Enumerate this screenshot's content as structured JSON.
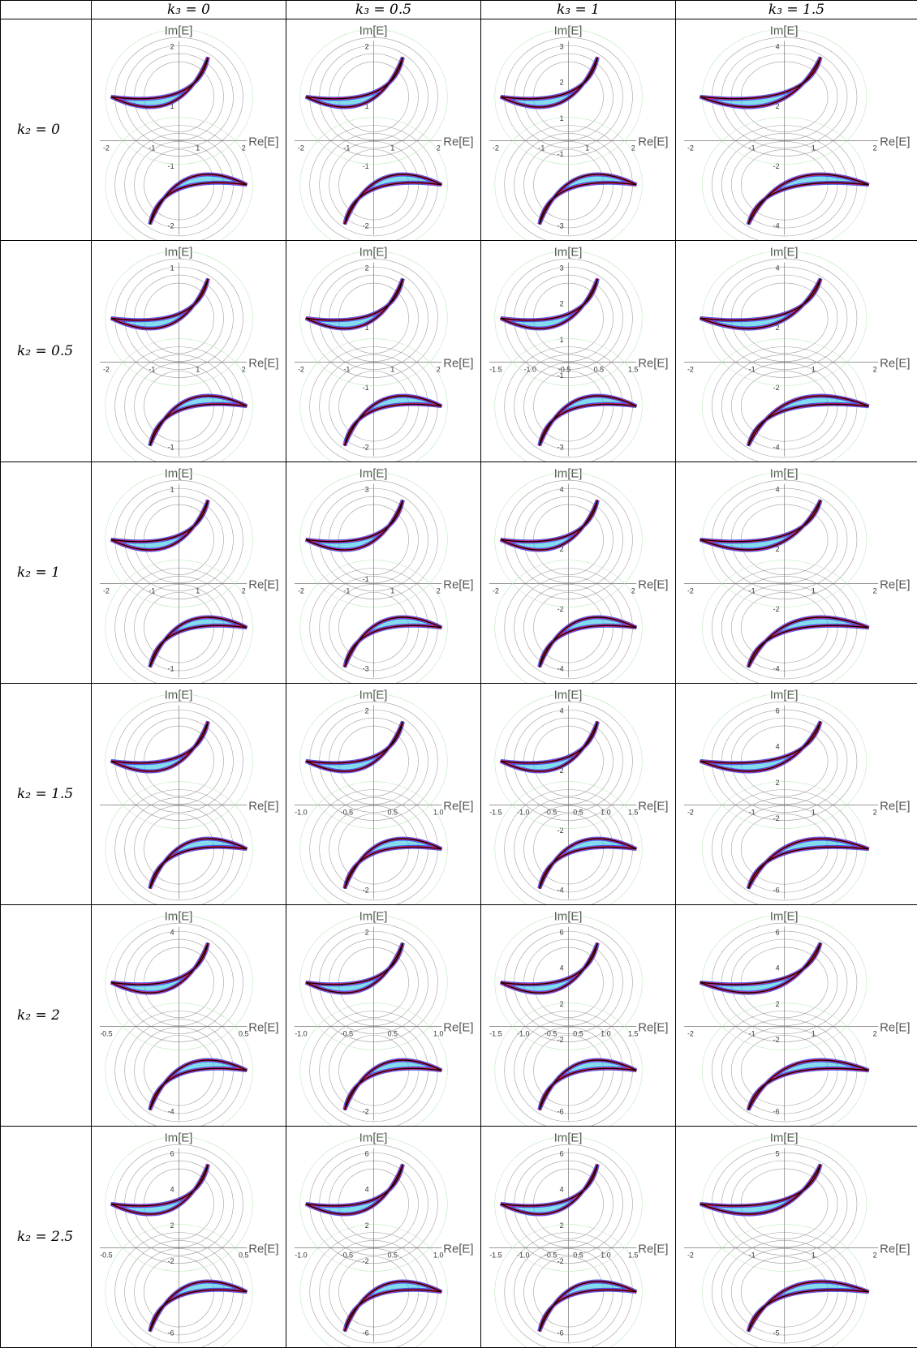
{
  "header": {
    "columns": [
      "k₃ = 0",
      "k₃ = 0.5",
      "k₃ = 1",
      "k₃ = 1.5"
    ]
  },
  "rows": [
    "k₂ = 0",
    "k₂ = 0.5",
    "k₂ = 1",
    "k₂ = 1.5",
    "k₂ = 2",
    "k₂ = 2.5"
  ],
  "axis_labels": {
    "y": "Im[E]",
    "x": "Re[E]"
  },
  "colors": {
    "outline_red": "#e02020",
    "core_black": "#000000",
    "blue": "#2040e0",
    "cyan": "#20c0e0",
    "magenta": "#c020c0",
    "contour_green": "#a0e0a0",
    "contour_gray": "#777777",
    "axis": "#888888"
  },
  "panels": [
    [
      {
        "xticks": [
          "-2",
          "-1",
          "1",
          "2"
        ],
        "yticks": [
          "2",
          "1",
          "-1",
          "-2"
        ],
        "shape": "star"
      },
      {
        "xticks": [
          "-2",
          "-1",
          "1",
          "2"
        ],
        "yticks": [
          "2",
          "1",
          "-1",
          "-2"
        ],
        "shape": "double-star"
      },
      {
        "xticks": [
          "-2",
          "-1",
          "1",
          "2"
        ],
        "yticks": [
          "3",
          "2",
          "1",
          "-1",
          "-2",
          "-3"
        ],
        "shape": "two-lobes"
      },
      {
        "xticks": [
          "-2",
          "-1",
          "1",
          "2"
        ],
        "yticks": [
          "4",
          "2",
          "-2",
          "-4"
        ],
        "shape": "two-lobes"
      }
    ],
    [
      {
        "xticks": [
          "-2",
          "-1",
          "1",
          "2"
        ],
        "yticks": [
          "1",
          "-1"
        ],
        "shape": "bands"
      },
      {
        "xticks": [
          "-2",
          "-1",
          "1",
          "2"
        ],
        "yticks": [
          "2",
          "1",
          "-1",
          "-2"
        ],
        "shape": "four-petal"
      },
      {
        "xticks": [
          "-1.5",
          "-1.0",
          "-0.5",
          "0.5",
          "1.5"
        ],
        "yticks": [
          "3",
          "2",
          "1",
          "-1",
          "-2",
          "-3"
        ],
        "shape": "diagonal"
      },
      {
        "xticks": [
          "-2",
          "-1",
          "1",
          "2"
        ],
        "yticks": [
          "4",
          "2",
          "-2",
          "-4"
        ],
        "shape": "diagonal"
      }
    ],
    [
      {
        "xticks": [
          "-2",
          "-1",
          "1",
          "2"
        ],
        "yticks": [
          "1",
          "-1"
        ],
        "shape": "bands-tri"
      },
      {
        "xticks": [
          "-2",
          "-1",
          "1",
          "2"
        ],
        "yticks": [
          "3",
          "-1",
          "-3"
        ],
        "shape": "offset-tri"
      },
      {
        "xticks": [
          "-2",
          "2"
        ],
        "yticks": [
          "4",
          "2",
          "-2",
          "-4"
        ],
        "shape": "x-cross"
      },
      {
        "xticks": [
          "-2",
          "-1",
          "1",
          "2"
        ],
        "yticks": [
          "4",
          "2",
          "-2",
          "-4"
        ],
        "shape": "diagonal"
      }
    ],
    [
      {
        "xticks": [],
        "yticks": [],
        "shape": "ribbon"
      },
      {
        "xticks": [
          "-1.0",
          "-0.5",
          "0.5",
          "1.0"
        ],
        "yticks": [
          "2",
          "-2"
        ],
        "shape": "offset-tri"
      },
      {
        "xticks": [
          "-1.5",
          "-1.0",
          "-0.5",
          "0.5",
          "1.0",
          "1.5"
        ],
        "yticks": [
          "4",
          "2",
          "-2",
          "-4"
        ],
        "shape": "chevrons"
      },
      {
        "xticks": [
          "-2",
          "-1",
          "1",
          "2"
        ],
        "yticks": [
          "6",
          "4",
          "2",
          "-2",
          "-4",
          "-6"
        ],
        "shape": "chevrons"
      }
    ],
    [
      {
        "xticks": [
          "-0.5",
          "0.5"
        ],
        "yticks": [
          "4",
          "-4"
        ],
        "shape": "offset-tri"
      },
      {
        "xticks": [
          "-1.0",
          "-0.5",
          "0.5",
          "1.0"
        ],
        "yticks": [
          "2",
          "-2"
        ],
        "shape": "offset-tri"
      },
      {
        "xticks": [
          "-1.5",
          "-1.0",
          "-0.5",
          "0.5",
          "1.0",
          "1.5"
        ],
        "yticks": [
          "6",
          "4",
          "2",
          "-2",
          "-4",
          "-6"
        ],
        "shape": "chevrons"
      },
      {
        "xticks": [
          "-2",
          "-1",
          "1",
          "2"
        ],
        "yticks": [
          "6",
          "4",
          "2",
          "-2",
          "-4",
          "-6"
        ],
        "shape": "chevrons"
      }
    ],
    [
      {
        "xticks": [
          "-0.5",
          "0.5"
        ],
        "yticks": [
          "6",
          "4",
          "2",
          "-2",
          "-4",
          "-6"
        ],
        "shape": "offset-tri"
      },
      {
        "xticks": [
          "-1.0",
          "-0.5",
          "0.5",
          "1.0"
        ],
        "yticks": [
          "6",
          "4",
          "2",
          "-2",
          "-4",
          "-6"
        ],
        "shape": "offset-tri"
      },
      {
        "xticks": [
          "-1.5",
          "-1.0",
          "-0.5",
          "0.5",
          "1.0",
          "1.5"
        ],
        "yticks": [
          "6",
          "4",
          "2",
          "-2",
          "-4",
          "-6"
        ],
        "shape": "chevrons"
      },
      {
        "xticks": [
          "-2",
          "-1",
          "1",
          "2"
        ],
        "yticks": [
          "5",
          "-5"
        ],
        "shape": "chevrons"
      }
    ]
  ]
}
